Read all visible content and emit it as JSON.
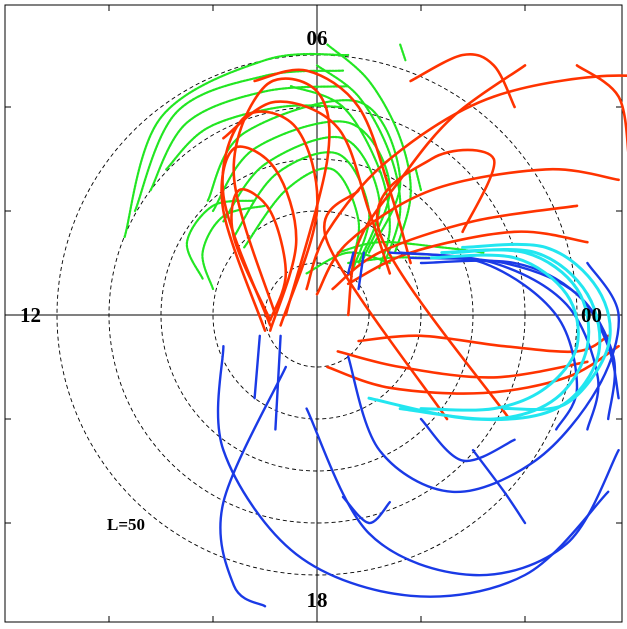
{
  "chart_data": {
    "type": "polar-trajectory",
    "title": "",
    "l_shell_circles": [
      10,
      20,
      30,
      40,
      50
    ],
    "l_label": "L=50",
    "mlt_labels": [
      {
        "text": "06",
        "position": "top"
      },
      {
        "text": "00",
        "position": "right"
      },
      {
        "text": "18",
        "position": "bottom"
      },
      {
        "text": "12",
        "position": "left"
      }
    ],
    "axis_range": [
      -60,
      60
    ],
    "grid": "dashed concentric circles and solid crosshair",
    "colors": {
      "green": "#22e622",
      "red": "#ff3300",
      "blue": "#1a3ae6",
      "cyan": "#22e6f0"
    },
    "series": [
      {
        "color": "green",
        "arcs": [
          [
            [
              -37,
              15
            ],
            [
              -30,
              38
            ],
            [
              -10,
              49
            ],
            [
              6,
              50
            ]
          ],
          [
            [
              -35,
              20
            ],
            [
              -27,
              39
            ],
            [
              -10,
              46
            ],
            [
              5,
              47
            ]
          ],
          [
            [
              -32,
              24
            ],
            [
              -25,
              37
            ],
            [
              -10,
              43
            ],
            [
              6,
              44
            ]
          ],
          [
            [
              -29,
              28
            ],
            [
              -21,
              36
            ],
            [
              -7,
              40
            ],
            [
              5,
              40
            ]
          ],
          [
            [
              -21,
              22
            ],
            [
              -14,
              35
            ],
            [
              8,
              41
            ],
            [
              16,
              26
            ],
            [
              10,
              12
            ]
          ],
          [
            [
              -20,
              20
            ],
            [
              -12,
              32
            ],
            [
              6,
              37
            ],
            [
              14,
              25
            ],
            [
              9,
              11
            ]
          ],
          [
            [
              -18,
              18
            ],
            [
              -10,
              29
            ],
            [
              5,
              34
            ],
            [
              12,
              22
            ],
            [
              8,
              10
            ]
          ],
          [
            [
              -16,
              15
            ],
            [
              -8,
              27
            ],
            [
              4,
              31
            ],
            [
              10,
              20
            ],
            [
              7,
              9
            ]
          ],
          [
            [
              -14,
              13
            ],
            [
              -6,
              24
            ],
            [
              3,
              28
            ],
            [
              8,
              18
            ],
            [
              6,
              8
            ]
          ],
          [
            [
              -22,
              7
            ],
            [
              -25,
              14
            ],
            [
              -20,
              21
            ],
            [
              -12,
              22
            ]
          ],
          [
            [
              -20,
              5
            ],
            [
              -22,
              12
            ],
            [
              -18,
              19
            ],
            [
              -10,
              21
            ]
          ],
          [
            [
              2,
              52
            ],
            [
              10,
              45
            ],
            [
              16,
              34
            ],
            [
              18,
              23
            ],
            [
              15,
              12
            ]
          ],
          [
            [
              0,
              48
            ],
            [
              8,
              42
            ],
            [
              14,
              31
            ],
            [
              16,
              20
            ],
            [
              13,
              10
            ]
          ],
          [
            [
              -5,
              44
            ],
            [
              5,
              40
            ],
            [
              12,
              28
            ],
            [
              14,
              17
            ],
            [
              12,
              9
            ]
          ],
          [
            [
              4,
              12
            ],
            [
              12,
              14
            ],
            [
              24,
              13
            ],
            [
              32,
              12
            ]
          ],
          [
            [
              6,
              10
            ],
            [
              14,
              11
            ],
            [
              22,
              11
            ],
            [
              28,
              11
            ]
          ],
          [
            [
              -2,
              8
            ],
            [
              6,
              12
            ],
            [
              14,
              10
            ]
          ],
          [
            [
              16,
              52
            ],
            [
              17,
              49
            ]
          ],
          [
            [
              19,
              28
            ],
            [
              20,
              24
            ]
          ]
        ]
      },
      {
        "color": "red",
        "arcs": [
          [
            [
              -8,
              0
            ],
            [
              -16,
              27
            ],
            [
              -10,
              44
            ],
            [
              0,
              43
            ],
            [
              2,
              30
            ],
            [
              -6,
              0
            ]
          ],
          [
            [
              -9,
              -2
            ],
            [
              -18,
              23
            ],
            [
              -14,
              38
            ],
            [
              -4,
              36
            ],
            [
              0,
              20
            ],
            [
              -7,
              -2
            ]
          ],
          [
            [
              -10,
              -3
            ],
            [
              -18,
              20
            ],
            [
              -16,
              32
            ],
            [
              -8,
              28
            ],
            [
              -4,
              14
            ],
            [
              -9,
              -3
            ]
          ],
          [
            [
              -9,
              -1
            ],
            [
              -16,
              15
            ],
            [
              -15,
              24
            ],
            [
              -9,
              20
            ],
            [
              -6,
              8
            ],
            [
              -9,
              -1
            ]
          ],
          [
            [
              -18,
              34
            ],
            [
              -8,
              41
            ],
            [
              4,
              36
            ],
            [
              10,
              20
            ],
            [
              14,
              8
            ]
          ],
          [
            [
              -12,
              45
            ],
            [
              -2,
              47
            ],
            [
              8,
              40
            ],
            [
              14,
              24
            ],
            [
              18,
              10
            ]
          ],
          [
            [
              -2,
              5
            ],
            [
              2,
              16
            ],
            [
              14,
              30
            ],
            [
              34,
              42
            ],
            [
              60,
              46
            ],
            [
              72,
              40
            ]
          ],
          [
            [
              0,
              4
            ],
            [
              6,
              14
            ],
            [
              22,
              24
            ],
            [
              44,
              28
            ],
            [
              58,
              26
            ]
          ],
          [
            [
              3,
              5
            ],
            [
              12,
              12
            ],
            [
              30,
              18
            ],
            [
              50,
              21
            ]
          ],
          [
            [
              6,
              6
            ],
            [
              18,
              12
            ],
            [
              38,
              16
            ],
            [
              52,
              14
            ]
          ],
          [
            [
              8,
              -5
            ],
            [
              20,
              -4
            ],
            [
              36,
              -6
            ],
            [
              50,
              -7
            ],
            [
              56,
              -4
            ]
          ],
          [
            [
              4,
              -7
            ],
            [
              16,
              -10
            ],
            [
              34,
              -12
            ],
            [
              52,
              -9
            ]
          ],
          [
            [
              2,
              -10
            ],
            [
              14,
              -14
            ],
            [
              32,
              -15
            ],
            [
              48,
              -12
            ],
            [
              58,
              -6
            ]
          ],
          [
            [
              18,
              45
            ],
            [
              28,
              50
            ],
            [
              34,
              48
            ],
            [
              38,
              40
            ]
          ],
          [
            [
              50,
              48
            ],
            [
              58,
              42
            ],
            [
              60,
              30
            ]
          ],
          [
            [
              37,
              -20
            ],
            [
              12,
              16
            ],
            [
              22,
              30
            ],
            [
              34,
              30
            ],
            [
              28,
              16
            ]
          ],
          [
            [
              25,
              -20
            ],
            [
              2,
              14
            ],
            [
              8,
              24
            ]
          ],
          [
            [
              6,
              0
            ],
            [
              8,
              14
            ],
            [
              16,
              26
            ],
            [
              26,
              38
            ],
            [
              40,
              48
            ]
          ]
        ]
      },
      {
        "color": "blue",
        "arcs": [
          [
            [
              20,
              10
            ],
            [
              38,
              10
            ],
            [
              50,
              4
            ],
            [
              56,
              -6
            ],
            [
              58,
              -16
            ]
          ],
          [
            [
              18,
              11
            ],
            [
              36,
              10
            ],
            [
              50,
              4
            ],
            [
              57,
              -8
            ],
            [
              56,
              -20
            ]
          ],
          [
            [
              16,
              12
            ],
            [
              34,
              10
            ],
            [
              48,
              2
            ],
            [
              54,
              -12
            ],
            [
              52,
              -22
            ]
          ],
          [
            [
              14,
              12
            ],
            [
              32,
              10
            ],
            [
              46,
              0
            ],
            [
              50,
              -14
            ],
            [
              46,
              -22
            ]
          ],
          [
            [
              6,
              -8
            ],
            [
              12,
              -26
            ],
            [
              26,
              -34
            ],
            [
              42,
              -28
            ],
            [
              54,
              -14
            ],
            [
              58,
              0
            ],
            [
              52,
              10
            ]
          ],
          [
            [
              -2,
              -18
            ],
            [
              10,
              -42
            ],
            [
              30,
              -50
            ],
            [
              48,
              -44
            ],
            [
              58,
              -26
            ]
          ],
          [
            [
              -18,
              -6
            ],
            [
              -18,
              -26
            ],
            [
              -4,
              -46
            ],
            [
              18,
              -54
            ],
            [
              40,
              -50
            ],
            [
              56,
              -34
            ]
          ],
          [
            [
              -6,
              -10
            ],
            [
              -18,
              -36
            ],
            [
              -16,
              -52
            ],
            [
              -10,
              -56
            ]
          ],
          [
            [
              -11,
              -4
            ],
            [
              -12,
              -16
            ]
          ],
          [
            [
              -7,
              -4
            ],
            [
              -8,
              -22
            ]
          ],
          [
            [
              20,
              -20
            ],
            [
              28,
              -28
            ],
            [
              38,
              -24
            ]
          ],
          [
            [
              30,
              -26
            ],
            [
              36,
              -34
            ],
            [
              40,
              -40
            ]
          ],
          [
            [
              5,
              -35
            ],
            [
              10,
              -40
            ],
            [
              14,
              -36
            ]
          ],
          [
            [
              7,
              12
            ],
            [
              6,
              8
            ]
          ],
          [
            [
              9,
              12
            ],
            [
              8,
              5
            ]
          ]
        ]
      },
      {
        "color": "cyan",
        "arcs": [
          [
            [
              22,
              11
            ],
            [
              38,
              11
            ],
            [
              48,
              4
            ],
            [
              50,
              -6
            ],
            [
              44,
              -14
            ],
            [
              34,
              -18
            ],
            [
              20,
              -18
            ]
          ],
          [
            [
              24,
              12
            ],
            [
              40,
              12
            ],
            [
              50,
              5
            ],
            [
              52,
              -6
            ],
            [
              46,
              -16
            ],
            [
              34,
              -20
            ],
            [
              16,
              -18
            ]
          ],
          [
            [
              26,
              12
            ],
            [
              42,
              12
            ],
            [
              52,
              4
            ],
            [
              54,
              -8
            ],
            [
              46,
              -18
            ],
            [
              30,
              -20
            ],
            [
              10,
              -16
            ]
          ],
          [
            [
              28,
              13
            ],
            [
              44,
              13
            ],
            [
              54,
              5
            ],
            [
              56,
              -6
            ],
            [
              48,
              -17
            ],
            [
              36,
              -18
            ]
          ]
        ]
      }
    ]
  }
}
